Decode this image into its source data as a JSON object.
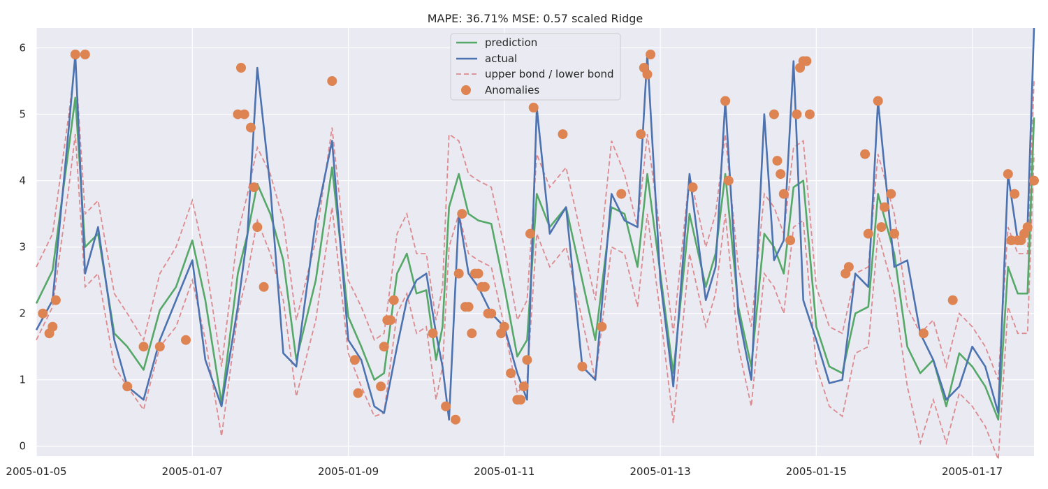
{
  "chart_data": {
    "type": "line",
    "title": "MAPE: 36.71% MSE: 0.57  scaled Ridge",
    "xlabel": "",
    "ylabel": "",
    "x_start": "2005-01-05",
    "x_end": "2005-01-17 19:00",
    "xlim": [
      "2005-01-05",
      "2005-01-17 19:00"
    ],
    "ylim": [
      -0.15,
      6.3
    ],
    "x_tick_labels": [
      "2005-01-05",
      "2005-01-07",
      "2005-01-09",
      "2005-01-11",
      "2005-01-13",
      "2005-01-15",
      "2005-01-17"
    ],
    "y_tick_values": [
      0,
      1,
      2,
      3,
      4,
      5,
      6
    ],
    "y_tick_labels": [
      "0",
      "1",
      "2",
      "3",
      "4",
      "5",
      "6"
    ],
    "grid": true,
    "legend_position": "top-center",
    "colors": {
      "prediction": "#55a868",
      "actual": "#4c72b0",
      "bounds": "#dd8a8e",
      "anomalies": "#dd8452",
      "plot_bg": "#eaeaf2",
      "grid": "#ffffff"
    },
    "series": [
      {
        "name": "prediction",
        "style": "solid"
      },
      {
        "name": "actual",
        "style": "solid"
      },
      {
        "name": "upper bond / lower bond",
        "style": "dashed"
      },
      {
        "name": "Anomalies",
        "style": "marker"
      }
    ],
    "x": [
      "2005-01-05 00:00",
      "2005-01-05 05:00",
      "2005-01-05 10:00",
      "2005-01-05 12:00",
      "2005-01-05 15:00",
      "2005-01-05 19:00",
      "2005-01-06 00:00",
      "2005-01-06 04:00",
      "2005-01-06 09:00",
      "2005-01-06 14:00",
      "2005-01-06 19:00",
      "2005-01-07 00:00",
      "2005-01-07 04:00",
      "2005-01-07 09:00",
      "2005-01-07 14:00",
      "2005-01-07 17:00",
      "2005-01-07 20:00",
      "2005-01-08 00:00",
      "2005-01-08 04:00",
      "2005-01-08 08:00",
      "2005-01-08 14:00",
      "2005-01-08 19:00",
      "2005-01-09 00:00",
      "2005-01-09 04:00",
      "2005-01-09 08:00",
      "2005-01-09 11:00",
      "2005-01-09 15:00",
      "2005-01-09 18:00",
      "2005-01-09 21:00",
      "2005-01-10 00:00",
      "2005-01-10 03:00",
      "2005-01-10 05:00",
      "2005-01-10 07:00",
      "2005-01-10 10:00",
      "2005-01-10 13:00",
      "2005-01-10 16:00",
      "2005-01-10 20:00",
      "2005-01-11 00:00",
      "2005-01-11 04:00",
      "2005-01-11 07:00",
      "2005-01-11 10:00",
      "2005-01-11 14:00",
      "2005-01-11 19:00",
      "2005-01-12 00:00",
      "2005-01-12 04:00",
      "2005-01-12 09:00",
      "2005-01-12 13:00",
      "2005-01-12 17:00",
      "2005-01-12 20:00",
      "2005-01-13 00:00",
      "2005-01-13 04:00",
      "2005-01-13 09:00",
      "2005-01-13 14:00",
      "2005-01-13 17:00",
      "2005-01-13 20:00",
      "2005-01-14 00:00",
      "2005-01-14 04:00",
      "2005-01-14 08:00",
      "2005-01-14 11:00",
      "2005-01-14 14:00",
      "2005-01-14 17:00",
      "2005-01-14 20:00",
      "2005-01-15 00:00",
      "2005-01-15 04:00",
      "2005-01-15 08:00",
      "2005-01-15 12:00",
      "2005-01-15 16:00",
      "2005-01-15 19:00",
      "2005-01-16 00:00",
      "2005-01-16 04:00",
      "2005-01-16 08:00",
      "2005-01-16 12:00",
      "2005-01-16 16:00",
      "2005-01-16 20:00",
      "2005-01-17 00:00",
      "2005-01-17 04:00",
      "2005-01-17 08:00",
      "2005-01-17 11:00",
      "2005-01-17 14:00",
      "2005-01-17 17:00",
      "2005-01-17 19:00"
    ],
    "prediction": [
      2.15,
      2.65,
      4.5,
      5.25,
      3.0,
      3.2,
      1.7,
      1.5,
      1.15,
      2.05,
      2.4,
      3.1,
      2.2,
      0.65,
      2.6,
      3.2,
      3.95,
      3.5,
      2.8,
      1.3,
      2.5,
      4.2,
      1.95,
      1.5,
      1.0,
      1.1,
      2.6,
      2.9,
      2.3,
      2.35,
      1.3,
      1.8,
      3.6,
      4.1,
      3.5,
      3.4,
      3.35,
      2.4,
      1.35,
      1.6,
      3.8,
      3.3,
      3.6,
      2.5,
      1.6,
      3.6,
      3.5,
      2.7,
      4.1,
      2.6,
      1.1,
      3.5,
      2.4,
      2.9,
      4.1,
      2.1,
      1.2,
      3.2,
      3.0,
      2.6,
      3.9,
      4.0,
      1.8,
      1.2,
      1.1,
      2.0,
      2.1,
      3.8,
      2.9,
      1.5,
      1.1,
      1.3,
      0.6,
      1.4,
      1.2,
      0.9,
      0.4,
      2.7,
      2.3,
      2.3,
      4.95
    ],
    "actual": [
      1.75,
      2.2,
      4.8,
      5.9,
      2.6,
      3.3,
      1.6,
      0.9,
      0.7,
      1.6,
      2.2,
      2.8,
      1.3,
      0.6,
      2.1,
      3.2,
      5.7,
      3.9,
      1.4,
      1.2,
      3.4,
      4.6,
      1.6,
      1.3,
      0.6,
      0.5,
      1.5,
      2.2,
      2.5,
      2.6,
      1.7,
      1.2,
      0.4,
      3.5,
      2.6,
      2.4,
      2.0,
      1.8,
      1.1,
      0.7,
      5.1,
      3.2,
      3.6,
      1.2,
      1.0,
      3.8,
      3.4,
      3.3,
      5.9,
      2.5,
      0.9,
      4.1,
      2.2,
      2.7,
      5.2,
      2.0,
      1.0,
      5.0,
      2.8,
      3.1,
      5.8,
      2.2,
      1.6,
      0.95,
      1.0,
      2.6,
      2.4,
      5.2,
      2.7,
      2.8,
      1.7,
      1.3,
      0.7,
      0.9,
      1.5,
      1.2,
      0.5,
      4.1,
      3.1,
      3.3,
      6.3
    ],
    "upper": [
      2.7,
      3.2,
      5.0,
      5.8,
      3.5,
      3.7,
      2.3,
      2.0,
      1.6,
      2.6,
      3.0,
      3.7,
      2.8,
      1.2,
      3.2,
      3.8,
      4.5,
      4.1,
      3.4,
      1.9,
      3.1,
      4.8,
      2.5,
      2.1,
      1.6,
      1.7,
      3.2,
      3.5,
      2.9,
      2.9,
      1.9,
      2.4,
      4.7,
      4.6,
      4.1,
      4.0,
      3.9,
      3.0,
      1.9,
      2.2,
      4.4,
      3.9,
      4.2,
      3.1,
      2.2,
      4.6,
      4.1,
      3.3,
      4.7,
      3.2,
      1.7,
      4.1,
      3.0,
      3.5,
      4.7,
      2.7,
      1.8,
      3.8,
      3.6,
      3.2,
      4.5,
      4.6,
      2.4,
      1.8,
      1.7,
      2.6,
      2.7,
      4.4,
      3.5,
      2.1,
      1.7,
      1.9,
      1.2,
      2.0,
      1.8,
      1.5,
      1.0,
      3.3,
      2.9,
      2.9,
      5.5
    ],
    "lower": [
      1.6,
      2.1,
      3.9,
      4.7,
      2.4,
      2.6,
      1.2,
      0.9,
      0.55,
      1.5,
      1.8,
      2.5,
      1.6,
      0.15,
      2.0,
      2.6,
      3.4,
      2.9,
      2.2,
      0.75,
      1.9,
      3.6,
      1.4,
      0.9,
      0.45,
      0.5,
      2.0,
      2.3,
      1.7,
      1.8,
      0.7,
      1.2,
      3.0,
      3.5,
      2.9,
      2.8,
      2.7,
      1.8,
      0.8,
      1.0,
      3.2,
      2.7,
      3.0,
      1.9,
      1.0,
      3.0,
      2.9,
      2.1,
      3.5,
      2.0,
      0.35,
      2.9,
      1.8,
      2.3,
      3.5,
      1.5,
      0.6,
      2.6,
      2.4,
      2.0,
      3.3,
      3.4,
      1.2,
      0.6,
      0.45,
      1.4,
      1.5,
      3.2,
      2.3,
      0.9,
      0.05,
      0.7,
      0.05,
      0.8,
      0.6,
      0.3,
      -0.2,
      2.1,
      1.7,
      1.7,
      4.4
    ],
    "anomalies": [
      {
        "x": "2005-01-05 12:00",
        "y": 5.9
      },
      {
        "x": "2005-01-05 15:00",
        "y": 5.9
      },
      {
        "x": "2005-01-05 02:00",
        "y": 2.0
      },
      {
        "x": "2005-01-05 04:00",
        "y": 1.7
      },
      {
        "x": "2005-01-05 05:00",
        "y": 1.8
      },
      {
        "x": "2005-01-05 06:00",
        "y": 2.2
      },
      {
        "x": "2005-01-06 04:00",
        "y": 0.9
      },
      {
        "x": "2005-01-06 09:00",
        "y": 1.5
      },
      {
        "x": "2005-01-06 14:00",
        "y": 1.5
      },
      {
        "x": "2005-01-06 22:00",
        "y": 1.6
      },
      {
        "x": "2005-01-07 14:00",
        "y": 5.0
      },
      {
        "x": "2005-01-07 15:00",
        "y": 5.7
      },
      {
        "x": "2005-01-07 16:00",
        "y": 5.0
      },
      {
        "x": "2005-01-07 18:00",
        "y": 4.8
      },
      {
        "x": "2005-01-07 19:00",
        "y": 3.9
      },
      {
        "x": "2005-01-07 20:00",
        "y": 3.3
      },
      {
        "x": "2005-01-07 22:00",
        "y": 2.4
      },
      {
        "x": "2005-01-08 19:00",
        "y": 5.5
      },
      {
        "x": "2005-01-09 02:00",
        "y": 1.3
      },
      {
        "x": "2005-01-09 03:00",
        "y": 0.8
      },
      {
        "x": "2005-01-09 10:00",
        "y": 0.9
      },
      {
        "x": "2005-01-09 11:00",
        "y": 1.5
      },
      {
        "x": "2005-01-09 12:00",
        "y": 1.9
      },
      {
        "x": "2005-01-09 13:00",
        "y": 1.9
      },
      {
        "x": "2005-01-09 14:00",
        "y": 2.2
      },
      {
        "x": "2005-01-10 02:00",
        "y": 1.7
      },
      {
        "x": "2005-01-10 06:00",
        "y": 0.6
      },
      {
        "x": "2005-01-10 09:00",
        "y": 0.4
      },
      {
        "x": "2005-01-10 10:00",
        "y": 2.6
      },
      {
        "x": "2005-01-10 11:00",
        "y": 3.5
      },
      {
        "x": "2005-01-10 12:00",
        "y": 2.1
      },
      {
        "x": "2005-01-10 13:00",
        "y": 2.1
      },
      {
        "x": "2005-01-10 14:00",
        "y": 1.7
      },
      {
        "x": "2005-01-10 15:00",
        "y": 2.6
      },
      {
        "x": "2005-01-10 16:00",
        "y": 2.6
      },
      {
        "x": "2005-01-10 17:00",
        "y": 2.4
      },
      {
        "x": "2005-01-10 18:00",
        "y": 2.4
      },
      {
        "x": "2005-01-10 19:00",
        "y": 2.0
      },
      {
        "x": "2005-01-10 20:00",
        "y": 2.0
      },
      {
        "x": "2005-01-10 23:00",
        "y": 1.7
      },
      {
        "x": "2005-01-11 00:00",
        "y": 1.8
      },
      {
        "x": "2005-01-11 02:00",
        "y": 1.1
      },
      {
        "x": "2005-01-11 04:00",
        "y": 0.7
      },
      {
        "x": "2005-01-11 05:00",
        "y": 0.7
      },
      {
        "x": "2005-01-11 06:00",
        "y": 0.9
      },
      {
        "x": "2005-01-11 07:00",
        "y": 1.3
      },
      {
        "x": "2005-01-11 08:00",
        "y": 3.2
      },
      {
        "x": "2005-01-11 09:00",
        "y": 5.1
      },
      {
        "x": "2005-01-11 18:00",
        "y": 4.7
      },
      {
        "x": "2005-01-12 00:00",
        "y": 1.2
      },
      {
        "x": "2005-01-12 06:00",
        "y": 1.8
      },
      {
        "x": "2005-01-12 12:00",
        "y": 3.8
      },
      {
        "x": "2005-01-12 18:00",
        "y": 4.7
      },
      {
        "x": "2005-01-12 19:00",
        "y": 5.7
      },
      {
        "x": "2005-01-12 20:00",
        "y": 5.6
      },
      {
        "x": "2005-01-12 21:00",
        "y": 5.9
      },
      {
        "x": "2005-01-13 10:00",
        "y": 3.9
      },
      {
        "x": "2005-01-13 20:00",
        "y": 5.2
      },
      {
        "x": "2005-01-13 21:00",
        "y": 4.0
      },
      {
        "x": "2005-01-14 11:00",
        "y": 5.0
      },
      {
        "x": "2005-01-14 12:00",
        "y": 4.3
      },
      {
        "x": "2005-01-14 13:00",
        "y": 4.1
      },
      {
        "x": "2005-01-14 14:00",
        "y": 3.8
      },
      {
        "x": "2005-01-14 16:00",
        "y": 3.1
      },
      {
        "x": "2005-01-14 18:00",
        "y": 5.0
      },
      {
        "x": "2005-01-14 19:00",
        "y": 5.7
      },
      {
        "x": "2005-01-14 20:00",
        "y": 5.8
      },
      {
        "x": "2005-01-14 21:00",
        "y": 5.8
      },
      {
        "x": "2005-01-14 22:00",
        "y": 5.0
      },
      {
        "x": "2005-01-15 09:00",
        "y": 2.6
      },
      {
        "x": "2005-01-15 10:00",
        "y": 2.7
      },
      {
        "x": "2005-01-15 15:00",
        "y": 4.4
      },
      {
        "x": "2005-01-15 16:00",
        "y": 3.2
      },
      {
        "x": "2005-01-15 19:00",
        "y": 5.2
      },
      {
        "x": "2005-01-15 20:00",
        "y": 3.3
      },
      {
        "x": "2005-01-15 21:00",
        "y": 3.6
      },
      {
        "x": "2005-01-15 23:00",
        "y": 3.8
      },
      {
        "x": "2005-01-16 00:00",
        "y": 3.2
      },
      {
        "x": "2005-01-16 09:00",
        "y": 1.7
      },
      {
        "x": "2005-01-16 18:00",
        "y": 2.2
      },
      {
        "x": "2005-01-17 11:00",
        "y": 4.1
      },
      {
        "x": "2005-01-17 12:00",
        "y": 3.1
      },
      {
        "x": "2005-01-17 13:00",
        "y": 3.8
      },
      {
        "x": "2005-01-17 14:00",
        "y": 3.1
      },
      {
        "x": "2005-01-17 15:00",
        "y": 3.1
      },
      {
        "x": "2005-01-17 16:00",
        "y": 3.2
      },
      {
        "x": "2005-01-17 17:00",
        "y": 3.3
      },
      {
        "x": "2005-01-17 19:00",
        "y": 4.0
      }
    ]
  }
}
